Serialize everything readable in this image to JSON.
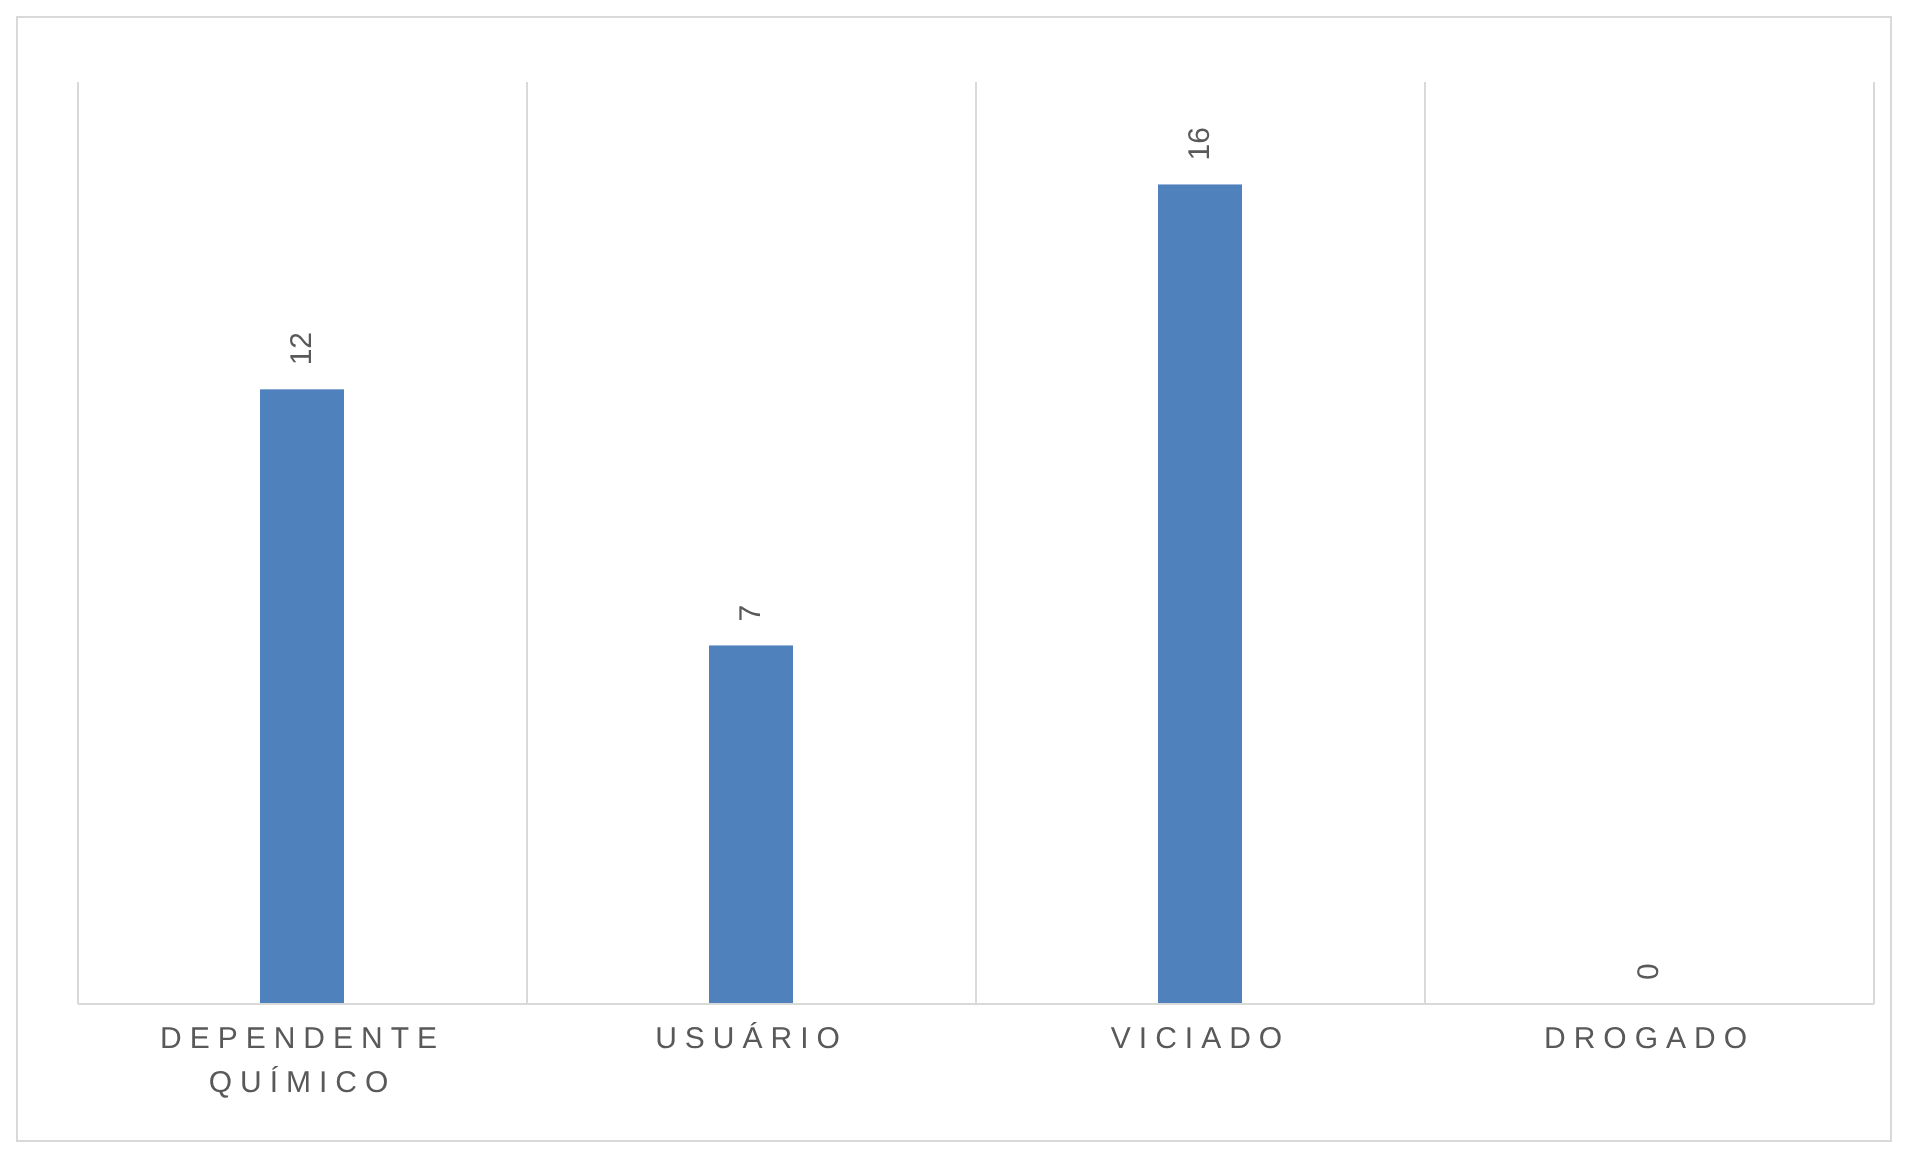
{
  "chart_data": {
    "type": "bar",
    "categories": [
      "DEPENDENTE QUÍMICO",
      "USUÁRIO",
      "VICIADO",
      "DROGADO"
    ],
    "values": [
      12,
      7,
      16,
      0
    ],
    "color": "#4f81bd",
    "data_labels": true,
    "grid": "x"
  }
}
